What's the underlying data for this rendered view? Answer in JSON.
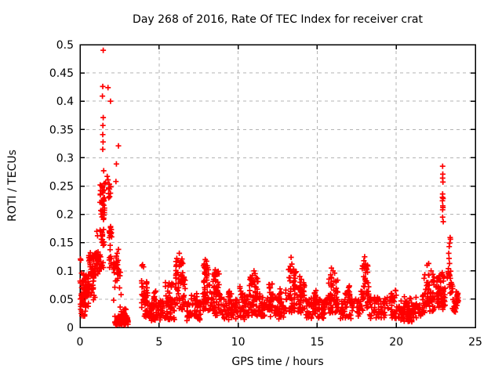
{
  "window": {
    "title": "Day 268 of 2016, Rate Of TEC Index for receiver crat"
  },
  "colors": {
    "marker": "#ff0000",
    "grid": "#b3b3b3",
    "border": "#000000",
    "text": "#000000",
    "background": "#ffffff"
  },
  "chart_data": {
    "type": "scatter",
    "title": "Day 268 of 2016, Rate Of TEC Index for receiver crat",
    "xlabel": "GPS time / hours",
    "ylabel": "ROTI / TECUs",
    "receiver": "crat",
    "day_of_year": "268",
    "year": "2016",
    "xlim": [
      0,
      25
    ],
    "ylim": [
      0,
      0.5
    ],
    "grid": "on",
    "legend": "none",
    "marker": "plus",
    "marker_color": "#ff0000",
    "marker_half_size": 3.5,
    "seed": 268,
    "x_ticks": [
      {
        "v": 0,
        "label": "0"
      },
      {
        "v": 5,
        "label": "5"
      },
      {
        "v": 10,
        "label": "10"
      },
      {
        "v": 15,
        "label": "15"
      },
      {
        "v": 20,
        "label": "20"
      },
      {
        "v": 25,
        "label": "25"
      }
    ],
    "y_ticks": [
      {
        "v": 0,
        "label": "0"
      },
      {
        "v": 0.05,
        "label": "0.05"
      },
      {
        "v": 0.1,
        "label": "0.1"
      },
      {
        "v": 0.15,
        "label": "0.15"
      },
      {
        "v": 0.2,
        "label": "0.2"
      },
      {
        "v": 0.25,
        "label": "0.25"
      },
      {
        "v": 0.3,
        "label": "0.3"
      },
      {
        "v": 0.35,
        "label": "0.35"
      },
      {
        "v": 0.4,
        "label": "0.4"
      },
      {
        "v": 0.45,
        "label": "0.45"
      },
      {
        "v": 0.5,
        "label": "0.5"
      }
    ],
    "points": [
      [
        1.47,
        0.49
      ],
      [
        1.44,
        0.426
      ],
      [
        1.77,
        0.424
      ],
      [
        1.42,
        0.409
      ],
      [
        1.93,
        0.4
      ],
      [
        1.47,
        0.371
      ],
      [
        1.45,
        0.357
      ],
      [
        1.44,
        0.341
      ],
      [
        1.46,
        0.328
      ],
      [
        2.43,
        0.321
      ],
      [
        1.44,
        0.315
      ],
      [
        2.3,
        0.289
      ],
      [
        1.5,
        0.277
      ],
      [
        1.72,
        0.267
      ],
      [
        1.77,
        0.261
      ],
      [
        2.27,
        0.258
      ],
      [
        1.62,
        0.256
      ],
      [
        1.27,
        0.172
      ],
      [
        1.3,
        0.17
      ],
      [
        1.35,
        0.156
      ],
      [
        1.4,
        0.151
      ],
      [
        1.06,
        0.17
      ],
      [
        1.11,
        0.162
      ],
      [
        2.43,
        0.138
      ],
      [
        2.35,
        0.131
      ],
      [
        2.3,
        0.126
      ],
      [
        2.17,
        0.097
      ],
      [
        2.42,
        0.094
      ],
      [
        2.2,
        0.071
      ],
      [
        2.5,
        0.07
      ],
      [
        2.13,
        0.048
      ],
      [
        2.54,
        0.036
      ],
      [
        2.84,
        0.033
      ],
      [
        2.6,
        0.058
      ],
      [
        0.03,
        0.121
      ],
      [
        0.05,
        0.119
      ],
      [
        0.1,
        0.096
      ],
      [
        3.92,
        0.109
      ],
      [
        3.96,
        0.111
      ],
      [
        4.02,
        0.107
      ],
      [
        4.07,
        0.02
      ],
      [
        4.12,
        0.024
      ],
      [
        6.12,
        0.122
      ],
      [
        6.2,
        0.118
      ],
      [
        6.28,
        0.131
      ],
      [
        6.45,
        0.121
      ],
      [
        6.5,
        0.113
      ],
      [
        6.07,
        0.108
      ],
      [
        7.92,
        0.12
      ],
      [
        8.0,
        0.117
      ],
      [
        7.85,
        0.112
      ],
      [
        8.05,
        0.109
      ],
      [
        8.55,
        0.102
      ],
      [
        8.6,
        0.097
      ],
      [
        11.0,
        0.1
      ],
      [
        11.07,
        0.095
      ],
      [
        10.9,
        0.092
      ],
      [
        11.15,
        0.088
      ],
      [
        13.35,
        0.124
      ],
      [
        13.4,
        0.112
      ],
      [
        13.3,
        0.108
      ],
      [
        13.5,
        0.103
      ],
      [
        13.9,
        0.09
      ],
      [
        14.0,
        0.085
      ],
      [
        15.9,
        0.105
      ],
      [
        16.0,
        0.1
      ],
      [
        16.1,
        0.096
      ],
      [
        15.85,
        0.093
      ],
      [
        18.0,
        0.125
      ],
      [
        17.95,
        0.118
      ],
      [
        18.05,
        0.112
      ],
      [
        17.9,
        0.108
      ],
      [
        21.95,
        0.11
      ],
      [
        22.05,
        0.113
      ],
      [
        22.2,
        0.1
      ],
      [
        22.93,
        0.285
      ],
      [
        22.94,
        0.271
      ],
      [
        22.93,
        0.264
      ],
      [
        22.95,
        0.257
      ],
      [
        22.93,
        0.236
      ],
      [
        22.92,
        0.23
      ],
      [
        22.96,
        0.228
      ],
      [
        22.92,
        0.224
      ],
      [
        22.94,
        0.215
      ],
      [
        22.95,
        0.212
      ],
      [
        22.93,
        0.208
      ],
      [
        22.93,
        0.195
      ],
      [
        22.97,
        0.187
      ],
      [
        23.41,
        0.159
      ],
      [
        23.43,
        0.156
      ],
      [
        23.38,
        0.149
      ],
      [
        23.35,
        0.143
      ],
      [
        23.32,
        0.131
      ],
      [
        23.34,
        0.122
      ],
      [
        23.37,
        0.113
      ],
      [
        23.3,
        0.104
      ]
    ],
    "density_bands": [
      [
        0.0,
        0.55,
        0.035,
        0.095,
        55
      ],
      [
        0.0,
        0.35,
        0.02,
        0.042,
        14
      ],
      [
        0.35,
        0.95,
        0.048,
        0.1,
        40
      ],
      [
        0.55,
        1.15,
        0.09,
        0.135,
        45
      ],
      [
        0.95,
        1.35,
        0.098,
        0.133,
        22
      ],
      [
        1.25,
        1.55,
        0.198,
        0.256,
        30
      ],
      [
        1.8,
        2.0,
        0.228,
        0.256,
        12
      ],
      [
        1.38,
        1.55,
        0.16,
        0.2,
        8
      ],
      [
        1.85,
        2.02,
        0.155,
        0.18,
        14
      ],
      [
        1.4,
        1.52,
        0.1,
        0.158,
        8
      ],
      [
        1.85,
        1.97,
        0.1,
        0.15,
        8
      ],
      [
        2.05,
        2.45,
        0.1,
        0.124,
        18
      ],
      [
        2.1,
        2.6,
        0.082,
        0.1,
        8
      ],
      [
        2.2,
        3.05,
        0.004,
        0.02,
        65
      ],
      [
        2.55,
        3.0,
        0.02,
        0.032,
        12
      ],
      [
        3.88,
        4.3,
        0.034,
        0.085,
        30
      ],
      [
        4.0,
        4.35,
        0.015,
        0.034,
        10
      ],
      [
        4.38,
        5.0,
        0.012,
        0.045,
        42
      ],
      [
        4.55,
        4.85,
        0.045,
        0.065,
        10
      ],
      [
        5.0,
        6.0,
        0.012,
        0.05,
        60
      ],
      [
        5.4,
        5.9,
        0.05,
        0.08,
        15
      ],
      [
        6.0,
        6.7,
        0.03,
        0.09,
        45
      ],
      [
        6.05,
        6.5,
        0.09,
        0.118,
        16
      ],
      [
        6.7,
        7.7,
        0.012,
        0.045,
        55
      ],
      [
        7.0,
        7.4,
        0.045,
        0.062,
        10
      ],
      [
        7.75,
        8.25,
        0.03,
        0.09,
        40
      ],
      [
        7.8,
        8.15,
        0.09,
        0.112,
        14
      ],
      [
        8.25,
        9.0,
        0.02,
        0.06,
        45
      ],
      [
        8.4,
        8.8,
        0.06,
        0.1,
        25
      ],
      [
        9.0,
        10.5,
        0.012,
        0.05,
        80
      ],
      [
        9.3,
        9.6,
        0.05,
        0.065,
        8
      ],
      [
        10.1,
        10.45,
        0.04,
        0.075,
        12
      ],
      [
        10.55,
        11.45,
        0.02,
        0.06,
        50
      ],
      [
        10.7,
        11.3,
        0.06,
        0.09,
        20
      ],
      [
        11.45,
        13.0,
        0.015,
        0.055,
        85
      ],
      [
        11.9,
        12.2,
        0.055,
        0.08,
        12
      ],
      [
        12.55,
        12.8,
        0.05,
        0.07,
        8
      ],
      [
        13.0,
        14.25,
        0.025,
        0.07,
        60
      ],
      [
        13.15,
        13.7,
        0.07,
        0.105,
        22
      ],
      [
        13.85,
        14.2,
        0.055,
        0.085,
        12
      ],
      [
        14.25,
        15.5,
        0.015,
        0.05,
        70
      ],
      [
        14.6,
        15.0,
        0.05,
        0.07,
        10
      ],
      [
        15.55,
        16.45,
        0.025,
        0.06,
        45
      ],
      [
        15.7,
        16.3,
        0.06,
        0.09,
        18
      ],
      [
        16.45,
        17.7,
        0.015,
        0.05,
        65
      ],
      [
        16.75,
        17.15,
        0.05,
        0.075,
        12
      ],
      [
        17.75,
        18.3,
        0.03,
        0.08,
        30
      ],
      [
        17.8,
        18.2,
        0.08,
        0.113,
        16
      ],
      [
        18.3,
        20.0,
        0.015,
        0.055,
        80
      ],
      [
        19.6,
        20.0,
        0.048,
        0.068,
        10
      ],
      [
        20.0,
        21.6,
        0.01,
        0.04,
        85
      ],
      [
        20.3,
        21.3,
        0.04,
        0.055,
        15
      ],
      [
        21.65,
        22.45,
        0.025,
        0.065,
        45
      ],
      [
        21.75,
        22.4,
        0.065,
        0.095,
        18
      ],
      [
        22.5,
        23.1,
        0.03,
        0.075,
        50
      ],
      [
        22.55,
        23.05,
        0.075,
        0.1,
        15
      ],
      [
        23.2,
        23.45,
        0.085,
        0.1,
        10
      ],
      [
        23.35,
        23.6,
        0.06,
        0.08,
        12
      ],
      [
        23.55,
        23.85,
        0.025,
        0.05,
        18
      ],
      [
        23.75,
        23.97,
        0.04,
        0.063,
        15
      ]
    ]
  }
}
